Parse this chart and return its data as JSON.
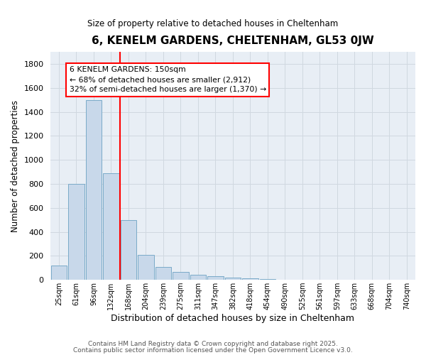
{
  "title": "6, KENELM GARDENS, CHELTENHAM, GL53 0JW",
  "subtitle": "Size of property relative to detached houses in Cheltenham",
  "xlabel": "Distribution of detached houses by size in Cheltenham",
  "ylabel": "Number of detached properties",
  "bar_color": "#c8d8ea",
  "bar_edge_color": "#7aaac8",
  "categories": [
    "25sqm",
    "61sqm",
    "96sqm",
    "132sqm",
    "168sqm",
    "204sqm",
    "239sqm",
    "275sqm",
    "311sqm",
    "347sqm",
    "382sqm",
    "418sqm",
    "454sqm",
    "490sqm",
    "525sqm",
    "561sqm",
    "597sqm",
    "633sqm",
    "668sqm",
    "704sqm",
    "740sqm"
  ],
  "values": [
    120,
    800,
    1500,
    890,
    500,
    210,
    110,
    65,
    45,
    30,
    20,
    10,
    5,
    3,
    2,
    1,
    1,
    0,
    0,
    0,
    0
  ],
  "ylim": [
    0,
    1900
  ],
  "yticks": [
    0,
    200,
    400,
    600,
    800,
    1000,
    1200,
    1400,
    1600,
    1800
  ],
  "annotation_title": "6 KENELM GARDENS: 150sqm",
  "annotation_line1": "← 68% of detached houses are smaller (2,912)",
  "annotation_line2": "32% of semi-detached houses are larger (1,370) →",
  "red_line_x": 3.5,
  "grid_color": "#d0d8e0",
  "background_color": "#e8eef5",
  "footer1": "Contains HM Land Registry data © Crown copyright and database right 2025.",
  "footer2": "Contains public sector information licensed under the Open Government Licence v3.0."
}
